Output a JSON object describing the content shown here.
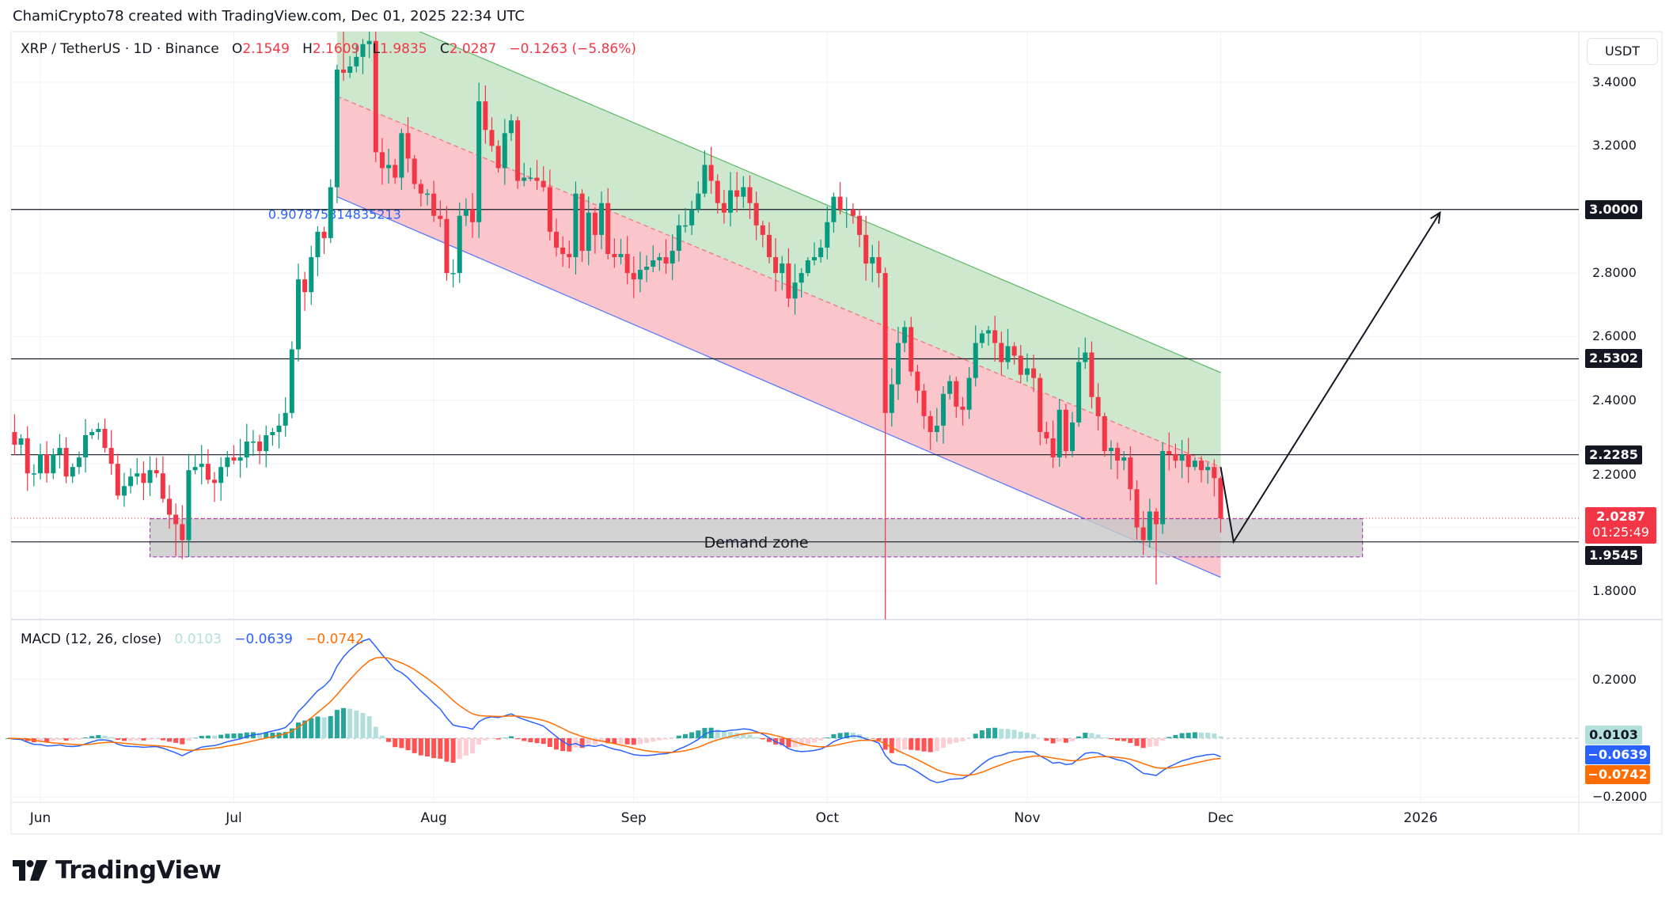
{
  "header": {
    "attribution": "ChamiCrypto78 created with TradingView.com, Dec 01, 2025 22:34 UTC"
  },
  "legend": {
    "symbol": "XRP / TetherUS · 1D · Binance",
    "open_label": "O",
    "open": "2.1549",
    "high_label": "H",
    "high": "2.1609",
    "low_label": "L",
    "low": "1.9835",
    "close_label": "C",
    "close": "2.0287",
    "change": "−0.1263 (−5.86%)"
  },
  "price_axis": {
    "currency_button": "USDT",
    "ticks": [
      "3.4000",
      "3.2000",
      "2.8000",
      "2.6000",
      "2.4000",
      "2.2000",
      "1.8000"
    ],
    "tags": [
      {
        "value": "3.0000"
      },
      {
        "value": "2.5302"
      },
      {
        "value": "2.2285"
      },
      {
        "value": "1.9545"
      }
    ],
    "last_price": "2.0287",
    "countdown": "01:25:49"
  },
  "macd": {
    "title": "MACD (12, 26, close)",
    "histogram": "0.0103",
    "macd": "−0.0639",
    "signal": "−0.0742",
    "ticks": [
      "0.2000",
      "−0.2000"
    ],
    "colors": {
      "macd": "#2962ff",
      "signal": "#ff6d00",
      "hist_up": "#26a69a",
      "hist_up_weak": "#b2dfdb",
      "hist_down": "#ff5252",
      "hist_down_weak": "#ffcdd2"
    }
  },
  "time_axis": {
    "labels": [
      {
        "label": "Jun",
        "date": "2025-06-01"
      },
      {
        "label": "Jul",
        "date": "2025-07-01"
      },
      {
        "label": "Aug",
        "date": "2025-08-01"
      },
      {
        "label": "Sep",
        "date": "2025-09-01"
      },
      {
        "label": "Oct",
        "date": "2025-10-01"
      },
      {
        "label": "Nov",
        "date": "2025-11-01"
      },
      {
        "label": "Dec",
        "date": "2025-12-01"
      },
      {
        "label": "2026",
        "date": "2026-01-01"
      }
    ]
  },
  "drawings": {
    "channel_label": "0.907875314835213",
    "channel": {
      "start": "2025-07-17",
      "end": "2025-12-01",
      "upper": [
        3.67,
        2.487
      ],
      "middle": [
        3.356,
        2.19
      ],
      "lower": [
        3.04,
        1.843
      ]
    },
    "horizontal_levels": [
      3.0,
      2.5302,
      2.2285,
      1.9545
    ],
    "demand_zone": {
      "label": "Demand zone",
      "start": "2025-06-18",
      "end": "2025-12-23",
      "top": 2.027,
      "bottom": 1.907
    },
    "projection_path": [
      [
        "2025-12-01",
        2.19
      ],
      [
        "2025-12-03",
        1.955
      ],
      [
        "2026-01-04",
        2.99
      ]
    ]
  },
  "colors": {
    "up": "#089981",
    "down": "#f23645",
    "channel_upper_fill": "#c8e6c9",
    "channel_lower_fill": "#f9c0c5",
    "channel_lower_line": "#5b7cfa",
    "channel_upper_line": "#66bb6a",
    "zone_fill": "#c8c8c8",
    "zone_border": "#9c27b0"
  },
  "chart_data": {
    "type": "candlestick",
    "price_range": [
      1.72,
      3.55
    ],
    "macd_range": [
      -0.27,
      0.36
    ],
    "first_candle": "2025-05-27",
    "close": [
      2.3,
      2.26,
      2.28,
      2.17,
      2.17,
      2.23,
      2.17,
      2.23,
      2.25,
      2.16,
      2.19,
      2.22,
      2.29,
      2.3,
      2.31,
      2.25,
      2.2,
      2.1,
      2.13,
      2.16,
      2.17,
      2.14,
      2.18,
      2.17,
      2.09,
      2.04,
      2.01,
      1.96,
      2.18,
      2.19,
      2.2,
      2.15,
      2.14,
      2.19,
      2.22,
      2.21,
      2.22,
      2.27,
      2.27,
      2.24,
      2.29,
      2.3,
      2.32,
      2.36,
      2.56,
      2.78,
      2.74,
      2.85,
      2.93,
      2.91,
      3.07,
      3.44,
      3.43,
      3.45,
      3.48,
      3.52,
      3.53,
      3.18,
      3.13,
      3.14,
      3.1,
      3.24,
      3.16,
      3.08,
      3.05,
      3.05,
      2.98,
      2.97,
      2.8,
      2.8,
      2.98,
      3.0,
      2.96,
      3.34,
      3.25,
      3.2,
      3.13,
      3.24,
      3.28,
      3.09,
      3.1,
      3.1,
      3.09,
      3.07,
      2.93,
      2.88,
      2.86,
      2.85,
      3.05,
      2.87,
      2.99,
      2.92,
      3.02,
      2.86,
      2.85,
      2.86,
      2.8,
      2.78,
      2.81,
      2.82,
      2.84,
      2.85,
      2.83,
      2.87,
      2.95,
      2.95,
      3.0,
      3.05,
      3.14,
      3.09,
      3.02,
      2.99,
      3.06,
      3.04,
      3.07,
      3.02,
      2.95,
      2.92,
      2.85,
      2.8,
      2.83,
      2.72,
      2.77,
      2.8,
      2.84,
      2.85,
      2.88,
      2.96,
      3.04,
      3.0,
      3.0,
      2.98,
      2.92,
      2.83,
      2.85,
      2.8,
      2.36,
      2.45,
      2.58,
      2.63,
      2.49,
      2.43,
      2.35,
      2.3,
      2.32,
      2.42,
      2.46,
      2.38,
      2.37,
      2.47,
      2.58,
      2.61,
      2.62,
      2.58,
      2.52,
      2.57,
      2.54,
      2.48,
      2.5,
      2.47,
      2.3,
      2.28,
      2.22,
      2.37,
      2.24,
      2.33,
      2.52,
      2.55,
      2.41,
      2.35,
      2.24,
      2.25,
      2.21,
      2.22,
      2.12,
      2.0,
      1.96,
      2.05,
      2.01,
      2.24,
      2.23,
      2.21,
      2.23,
      2.19,
      2.21,
      2.18,
      2.19,
      2.1549,
      2.0287
    ],
    "last_candle": {
      "open": 2.1549,
      "high": 2.1609,
      "low": 1.9835,
      "close": 2.0287
    },
    "notable_wicks": {
      "2025-07-18": {
        "high": 3.66
      },
      "2025-10-10": {
        "low": 1.25
      },
      "2025-11-21": {
        "low": 1.82
      },
      "2025-06-22": {
        "low": 1.91
      }
    }
  }
}
